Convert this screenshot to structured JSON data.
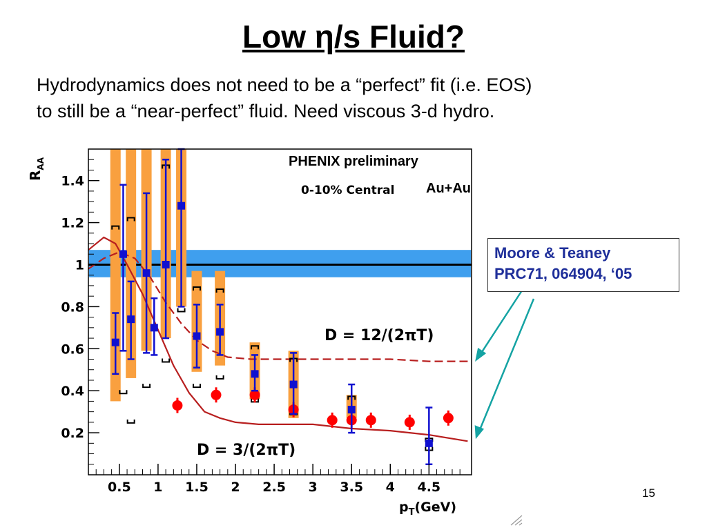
{
  "slide": {
    "title": "Low η/s Fluid?",
    "subtitle_line1": "Hydrodynamics does not need to be a “perfect” fit (i.e. EOS)",
    "subtitle_line2": "to still be a “near-perfect” fluid.  Need viscous 3-d hydro.",
    "callout_line1": "Moore & Teaney",
    "callout_line2": "PRC71, 064904, ‘05",
    "slide_number": "15"
  },
  "chart_data": {
    "type": "scatter",
    "title": "PHENIX preliminary",
    "subtitle_a": "0-10% Central",
    "subtitle_b": "Au+Au",
    "xlabel": "p",
    "xlabel_sub": "T",
    "xlabel_unit": "(GeV)",
    "ylabel": "R",
    "ylabel_sub": "AA",
    "xlim": [
      0,
      5
    ],
    "ylim": [
      0,
      1.55
    ],
    "xticks": [
      0.5,
      1,
      1.5,
      2,
      2.5,
      3,
      3.5,
      4,
      4.5
    ],
    "xtick_labels": [
      "0.5",
      "1",
      "1.5",
      "2",
      "2.5",
      "3",
      "3.5",
      "4",
      "4.5"
    ],
    "yticks": [
      0.2,
      0.4,
      0.6,
      0.8,
      1,
      1.2,
      1.4
    ],
    "ytick_labels": [
      "0.2",
      "0.4",
      "0.6",
      "0.8",
      "1",
      "1.2",
      "1.4"
    ],
    "reference_line": 1.0,
    "reference_band": [
      0.94,
      1.07
    ],
    "series": [
      {
        "marker": "square",
        "color": "#1010d0",
        "points": [
          {
            "x": 0.45,
            "y": 0.63,
            "stat": [
              0.48,
              0.77
            ],
            "sys": [
              0.35,
              1.55
            ],
            "brk": [
              null,
              1.18
            ]
          },
          {
            "x": 0.55,
            "y": 1.05,
            "stat": [
              0.59,
              1.38
            ],
            "sys": null,
            "brk": [
              0.39,
              null
            ]
          },
          {
            "x": 0.65,
            "y": 0.74,
            "stat": [
              0.55,
              0.92
            ],
            "sys": [
              0.46,
              1.55
            ],
            "brk": [
              0.25,
              1.22
            ]
          },
          {
            "x": 0.85,
            "y": 0.96,
            "stat": [
              0.58,
              1.34
            ],
            "sys": [
              0.59,
              1.55
            ],
            "brk": [
              0.42,
              null
            ]
          },
          {
            "x": 0.95,
            "y": 0.7,
            "stat": [
              0.57,
              0.84
            ],
            "sys": null,
            "brk": [
              null,
              null
            ]
          },
          {
            "x": 1.1,
            "y": 1.0,
            "stat": [
              0.65,
              1.5
            ],
            "sys": [
              0.65,
              1.55
            ],
            "brk": [
              0.54,
              1.47
            ]
          },
          {
            "x": 1.3,
            "y": 1.28,
            "stat": [
              0.8,
              1.55
            ],
            "sys": [
              0.8,
              1.55
            ],
            "brk": [
              0.78,
              null
            ]
          },
          {
            "x": 1.5,
            "y": 0.66,
            "stat": [
              0.51,
              0.81
            ],
            "sys": [
              0.49,
              0.97
            ],
            "brk": [
              0.42,
              0.89
            ]
          },
          {
            "x": 1.8,
            "y": 0.68,
            "stat": [
              0.57,
              0.81
            ],
            "sys": [
              0.52,
              0.97
            ],
            "brk": [
              0.46,
              0.88
            ]
          },
          {
            "x": 2.25,
            "y": 0.48,
            "stat": [
              0.4,
              0.57
            ],
            "sys": [
              0.36,
              0.63
            ],
            "brk": [
              0.35,
              0.61
            ]
          },
          {
            "x": 2.75,
            "y": 0.43,
            "stat": [
              0.29,
              0.58
            ],
            "sys": [
              0.27,
              0.59
            ],
            "brk": [
              0.29,
              0.55
            ]
          },
          {
            "x": 3.5,
            "y": 0.31,
            "stat": [
              0.2,
              0.43
            ],
            "sys": [
              0.27,
              0.38
            ],
            "brk": [
              0.26,
              0.37
            ]
          },
          {
            "x": 4.5,
            "y": 0.15,
            "stat": [
              0.05,
              0.32
            ],
            "sys": null,
            "brk": [
              0.12,
              0.17
            ]
          }
        ]
      },
      {
        "marker": "circle",
        "color": "#ff0000",
        "points": [
          {
            "x": 1.25,
            "y": 0.33
          },
          {
            "x": 1.75,
            "y": 0.38
          },
          {
            "x": 2.25,
            "y": 0.38
          },
          {
            "x": 2.75,
            "y": 0.31
          },
          {
            "x": 3.25,
            "y": 0.26
          },
          {
            "x": 3.5,
            "y": 0.26
          },
          {
            "x": 3.75,
            "y": 0.26
          },
          {
            "x": 4.25,
            "y": 0.25
          },
          {
            "x": 4.75,
            "y": 0.27
          }
        ]
      }
    ],
    "curves": [
      {
        "label": "D = 12/(2πT)",
        "style": "dashed",
        "color": "#b81f1f",
        "x": [
          0.1,
          0.3,
          0.5,
          0.7,
          0.9,
          1.1,
          1.3,
          1.5,
          1.7,
          1.9,
          2.2,
          2.6,
          3.0,
          3.5,
          4.0,
          4.5,
          5.0
        ],
        "y": [
          0.98,
          1.03,
          1.06,
          1.03,
          0.94,
          0.82,
          0.72,
          0.64,
          0.59,
          0.56,
          0.55,
          0.55,
          0.55,
          0.55,
          0.55,
          0.54,
          0.54
        ]
      },
      {
        "label": "D = 3/(2πT)",
        "style": "solid",
        "color": "#b81f1f",
        "x": [
          0.1,
          0.3,
          0.45,
          0.6,
          0.8,
          1.0,
          1.2,
          1.4,
          1.6,
          1.8,
          2.0,
          2.3,
          2.6,
          3.0,
          3.5,
          4.0,
          4.5,
          5.0
        ],
        "y": [
          1.07,
          1.13,
          1.1,
          1.0,
          0.86,
          0.69,
          0.52,
          0.39,
          0.3,
          0.27,
          0.25,
          0.24,
          0.24,
          0.24,
          0.22,
          0.21,
          0.19,
          0.16
        ]
      }
    ]
  }
}
